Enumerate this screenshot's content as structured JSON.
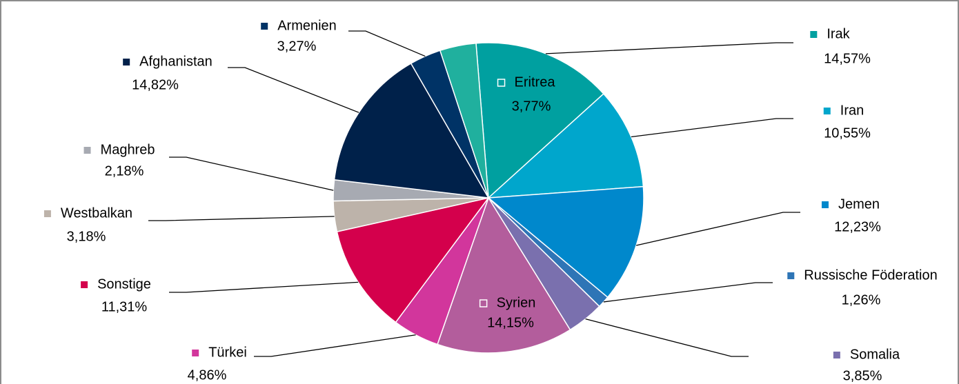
{
  "chart_data": {
    "type": "pie",
    "categories": [
      "Irak",
      "Iran",
      "Jemen",
      "Russische Föderation",
      "Somalia",
      "Syrien",
      "Türkei",
      "Sonstige",
      "Westbalkan",
      "Maghreb",
      "Afghanistan",
      "Armenien",
      "Eritrea"
    ],
    "values": [
      14.57,
      10.55,
      12.23,
      1.26,
      3.85,
      14.15,
      4.86,
      11.31,
      3.18,
      2.18,
      14.82,
      3.27,
      3.77
    ],
    "value_labels": [
      "14,57%",
      "10,55%",
      "12,23%",
      "1,26%",
      "3,85%",
      "14,15%",
      "4,86%",
      "11,31%",
      "3,18%",
      "2,18%",
      "14,82%",
      "3,27%",
      "3,77%"
    ],
    "colors": [
      "#00a0a0",
      "#00a6cc",
      "#0088cc",
      "#2e75b6",
      "#7a70ae",
      "#b35d9c",
      "#d2369c",
      "#d4004c",
      "#bdb3aa",
      "#a7aab2",
      "#00214a",
      "#003366",
      "#20b09e"
    ]
  }
}
